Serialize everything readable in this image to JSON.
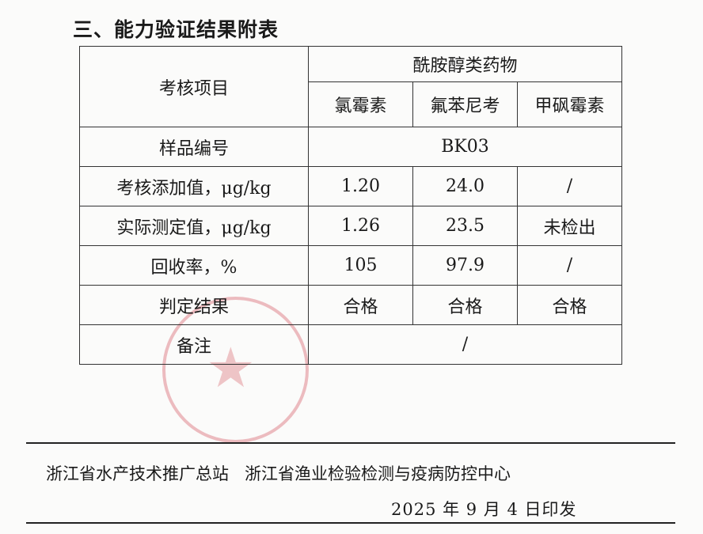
{
  "section_title": "三、能力验证结果附表",
  "table": {
    "item_header": "考核项目",
    "group_header": "酰胺醇类药物",
    "drugs": [
      "氯霉素",
      "氟苯尼考",
      "甲砜霉素"
    ],
    "sample_label": "样品编号",
    "sample_id": "BK03",
    "rows": [
      {
        "label": "考核添加值，μg/kg",
        "values": [
          "1.20",
          "24.0",
          "/"
        ]
      },
      {
        "label": "实际测定值，μg/kg",
        "values": [
          "1.26",
          "23.5",
          "未检出"
        ]
      },
      {
        "label": "回收率，%",
        "values": [
          "105",
          "97.9",
          "/"
        ]
      },
      {
        "label": "判定结果",
        "values": [
          "合格",
          "合格",
          "合格"
        ]
      }
    ],
    "remarks_label": "备注",
    "remarks_value": "/"
  },
  "footer": {
    "orgs": "浙江省水产技术推广总站   浙江省渔业检验检测与疫病防控中心",
    "date": "2025 年 9 月 4 日印发"
  },
  "stamp_color": "#d24650"
}
